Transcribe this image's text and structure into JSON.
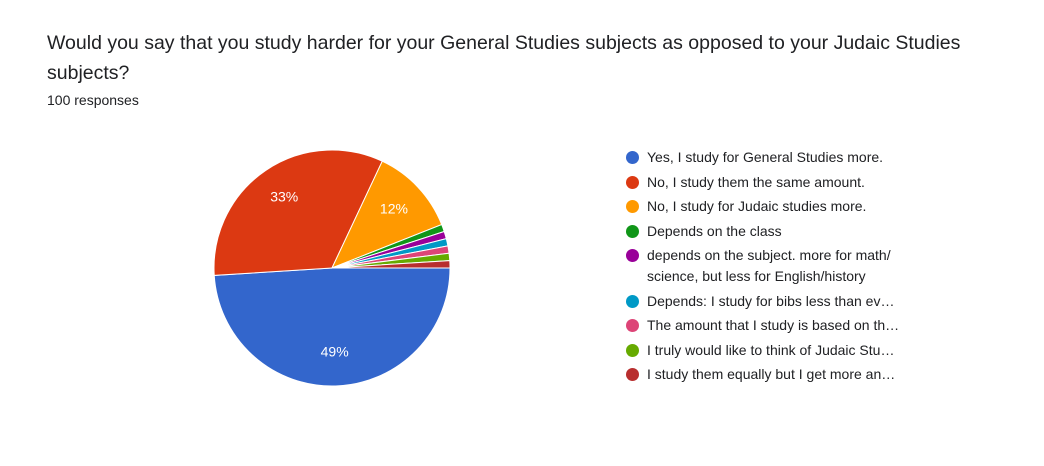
{
  "chart_data": {
    "type": "pie",
    "title": "Would you say that you study harder for your General Studies subjects as opposed to your Judaic Studies subjects?",
    "subtitle": "100 responses",
    "categories": [
      "Yes, I study for General Studies more.",
      "No, I study them the same amount.",
      "No, I study for Judaic studies more.",
      "Depends on the class",
      "depends on the subject. more for math/\nscience, but less for English/history",
      "Depends: I study for bibs less than ev…",
      "The amount that I study is based on th…",
      "I truly would like to think of Judaic Stu…",
      "I study them equally but I get more an…"
    ],
    "values": [
      49,
      33,
      12,
      1,
      1,
      1,
      1,
      1,
      1
    ],
    "value_labels": [
      "49%",
      "33%",
      "12%",
      null,
      null,
      null,
      null,
      null,
      null
    ],
    "colors": [
      "#3366cc",
      "#dc3912",
      "#ff9900",
      "#109618",
      "#990099",
      "#0099c6",
      "#dd4477",
      "#66aa00",
      "#b82e2e"
    ],
    "legend_position": "right"
  }
}
